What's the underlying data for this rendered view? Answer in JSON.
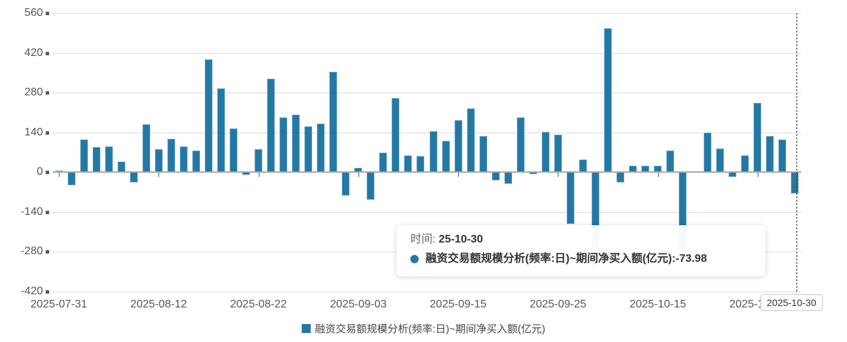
{
  "chart_data": {
    "type": "bar",
    "title": "",
    "xlabel": "",
    "ylabel": "",
    "ylim": [
      -420,
      560
    ],
    "yticks": [
      560,
      420,
      280,
      140,
      0,
      -140,
      -280,
      -420
    ],
    "grid": true,
    "legend_position": "bottom",
    "color": "#2478a4",
    "x_tick_labels": [
      "2025-07-31",
      "2025-08-12",
      "2025-08-22",
      "2025-09-03",
      "2025-09-15",
      "2025-09-25",
      "2025-10-15",
      "2025-10-27"
    ],
    "x_tick_indices": [
      0,
      8,
      16,
      24,
      32,
      40,
      48,
      56
    ],
    "series": [
      {
        "name": "融资交易额规模分析(频率:日)~期间净买入额(亿元)",
        "values": [
          5,
          -46,
          114,
          88,
          91,
          36,
          -35,
          169,
          82,
          118,
          91,
          77,
          396,
          294,
          155,
          -10,
          82,
          329,
          193,
          202,
          161,
          171,
          353,
          -83,
          15,
          -97,
          70,
          261,
          58,
          56,
          143,
          111,
          182,
          224,
          126,
          -28,
          -41,
          192,
          -7,
          141,
          133,
          -182,
          44,
          -337,
          507,
          -35,
          22,
          22,
          22,
          75,
          -271,
          3,
          140,
          83,
          -16,
          58,
          243,
          127,
          116,
          -73.98
        ]
      }
    ]
  },
  "tooltip": {
    "time_label": "时间: ",
    "time_value": "25-10-30",
    "series_label": "融资交易额规模分析(频率:日)~期间净买入额(亿元): ",
    "series_value": "-73.98"
  },
  "axis_pointer_label": "2025-10-30",
  "legend": {
    "label": "融资交易额规模分析(频率:日)~期间净买入额(亿元)"
  }
}
